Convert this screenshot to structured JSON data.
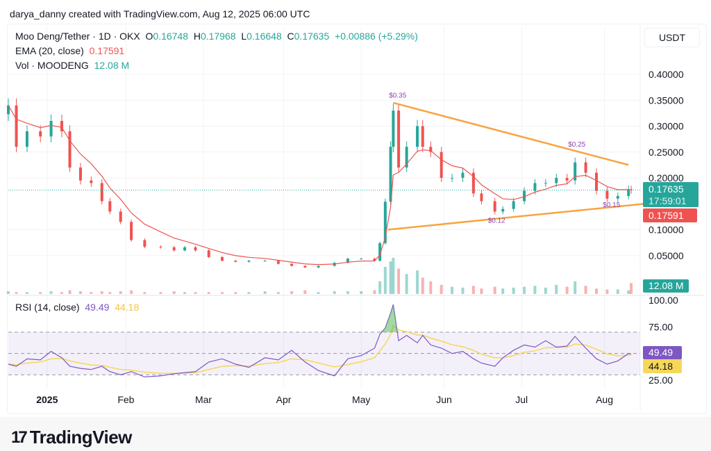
{
  "credit": "darya_danny created with TradingView.com, Aug 12, 2025 06:00 UTC",
  "legend": {
    "symbol": "Moo Deng/Tether · 1D · OKX",
    "o_label": "O",
    "o": "0.16748",
    "h_label": "H",
    "h": "0.17968",
    "l_label": "L",
    "l": "0.16648",
    "c_label": "C",
    "c": "0.17635",
    "change": "+0.00886 (+5.29%)",
    "ema_label": "EMA (20, close)",
    "ema_value": "0.17591",
    "vol_label": "Vol · MOODENG",
    "vol_value": "12.08 M",
    "rsi_label": "RSI (14, close)",
    "rsi_value": "49.49",
    "rsi_ma_value": "44.18"
  },
  "currency": "USDT",
  "price_tags": {
    "last": "0.17635",
    "countdown": "17:59:01",
    "ema": "0.17591",
    "volume": "12.08 M",
    "rsi": "49.49",
    "rsi_ma": "44.18"
  },
  "brand": "TradingView",
  "colors": {
    "up": "#26a69a",
    "down": "#ef5350",
    "ema": "#ef5350",
    "trend": "#f7a440",
    "rsi": "#7e57c2",
    "rsi_ma": "#f6d75a",
    "annot": "#8e44ad"
  },
  "chart_data": {
    "type": "candlestick",
    "title": "Moo Deng/Tether · 1D · OKX",
    "ylabel": "USDT",
    "ylim": [
      0,
      0.42
    ],
    "y_ticks": [
      "0.40000",
      "0.35000",
      "0.30000",
      "0.25000",
      "0.20000",
      "0.10000",
      "0.05000"
    ],
    "y_tick_values": [
      0.4,
      0.35,
      0.3,
      0.25,
      0.2,
      0.1,
      0.05
    ],
    "x_unit": "days since Dec 22, 2024",
    "x_ticks": [
      {
        "label": "2025",
        "day": 14.5,
        "bold": true
      },
      {
        "label": "Feb",
        "day": 44
      },
      {
        "label": "Mar",
        "day": 73
      },
      {
        "label": "Apr",
        "day": 103
      },
      {
        "label": "May",
        "day": 132
      },
      {
        "label": "Jun",
        "day": 163
      },
      {
        "label": "Jul",
        "day": 192
      },
      {
        "label": "Aug",
        "day": 223
      }
    ],
    "days": [
      0,
      3,
      7,
      12,
      16,
      20,
      23,
      27,
      31,
      35,
      38,
      42,
      46,
      51,
      57,
      62,
      66,
      70,
      75,
      80,
      85,
      90,
      96,
      101,
      106,
      111,
      116,
      122,
      127,
      132,
      137,
      139,
      141,
      143,
      144,
      146,
      149,
      153,
      155,
      158,
      162,
      166,
      170,
      174,
      177,
      182,
      185,
      189,
      193,
      197,
      201,
      205,
      209,
      212,
      216,
      220,
      224,
      228,
      232,
      233
    ],
    "close": [
      0.34,
      0.26,
      0.29,
      0.28,
      0.31,
      0.29,
      0.22,
      0.195,
      0.19,
      0.155,
      0.135,
      0.115,
      0.08,
      0.067,
      0.066,
      0.06,
      0.066,
      0.06,
      0.047,
      0.04,
      0.038,
      0.04,
      0.04,
      0.034,
      0.03,
      0.027,
      0.03,
      0.036,
      0.044,
      0.044,
      0.04,
      0.074,
      0.154,
      0.26,
      0.33,
      0.22,
      0.26,
      0.3,
      0.26,
      0.25,
      0.2,
      0.2,
      0.21,
      0.17,
      0.155,
      0.135,
      0.14,
      0.155,
      0.175,
      0.19,
      0.19,
      0.2,
      0.195,
      0.23,
      0.21,
      0.175,
      0.16,
      0.165,
      0.178,
      0.17635
    ],
    "volume": [
      3,
      2,
      2,
      2,
      3,
      2,
      4,
      3,
      2,
      3,
      2,
      3,
      4,
      2,
      2,
      3,
      2,
      2,
      2,
      2,
      2,
      2,
      3,
      2,
      3,
      4,
      2,
      3,
      3,
      3,
      4,
      14,
      30,
      36,
      40,
      28,
      22,
      26,
      18,
      14,
      10,
      8,
      7,
      9,
      6,
      8,
      6,
      7,
      8,
      9,
      7,
      10,
      8,
      14,
      9,
      6,
      5,
      5,
      4,
      12.08
    ],
    "rsi": [
      40,
      38,
      45,
      44,
      52,
      46,
      38,
      36,
      35,
      38,
      33,
      30,
      33,
      28,
      29,
      31,
      32,
      33,
      42,
      45,
      40,
      37,
      46,
      44,
      53,
      42,
      34,
      29,
      45,
      48,
      55,
      68,
      74,
      88,
      96,
      62,
      67,
      60,
      67,
      58,
      55,
      50,
      52,
      45,
      41,
      38,
      46,
      53,
      58,
      56,
      62,
      56,
      57,
      66,
      55,
      45,
      40,
      43,
      50,
      49.49
    ],
    "rsi_ylim": [
      0,
      100
    ],
    "rsi_ticks": [
      "100.00",
      "75.00",
      "25.00"
    ],
    "rsi_tick_values": [
      100,
      75,
      25
    ],
    "ema_period_points": 5,
    "trendlines": [
      {
        "name": "upper",
        "from": {
          "day": 144,
          "price": 0.345
        },
        "to": {
          "day": 232,
          "price": 0.225
        }
      },
      {
        "name": "lower",
        "from": {
          "day": 142,
          "price": 0.1
        },
        "to": {
          "day": 238,
          "price": 0.15
        }
      }
    ],
    "annotations": [
      {
        "text": "$0.35",
        "day": 145,
        "price": 0.35
      },
      {
        "text": "$0.25",
        "day": 212,
        "price": 0.255
      },
      {
        "text": "$0.12",
        "day": 182,
        "price": 0.108
      },
      {
        "text": "$0.15",
        "day": 225,
        "price": 0.138
      }
    ]
  }
}
